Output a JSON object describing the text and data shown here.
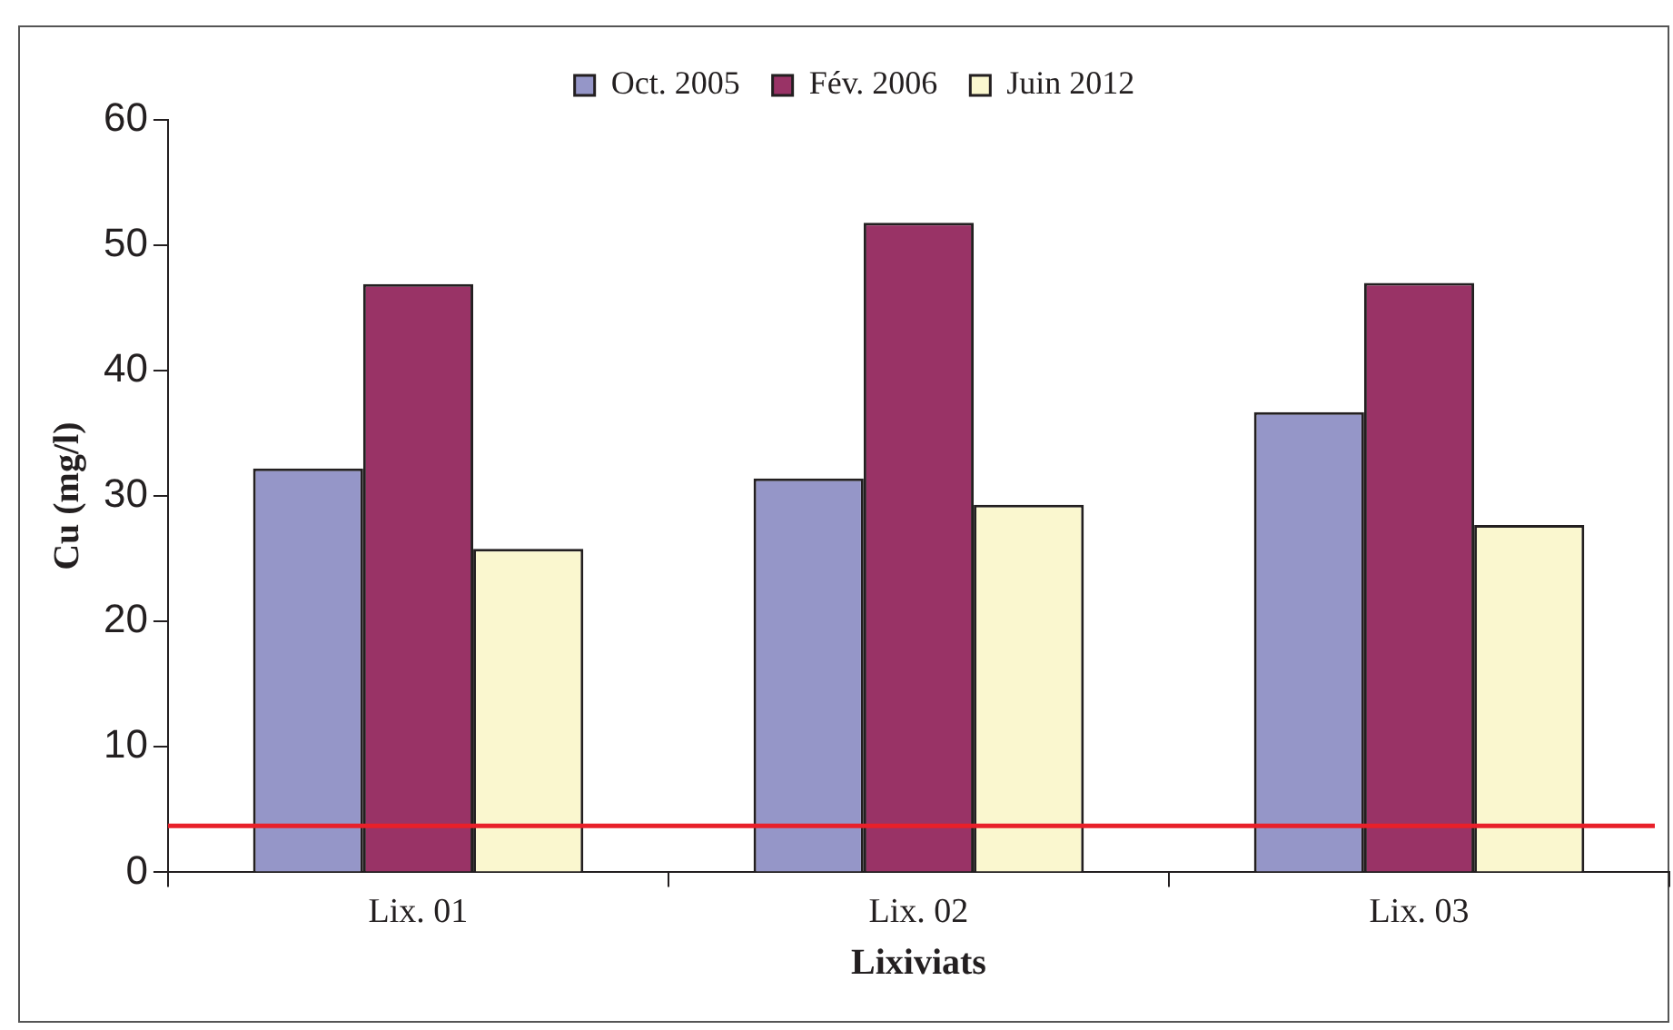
{
  "chart_data": {
    "type": "bar",
    "xlabel": "Lixiviats",
    "ylabel": "Cu (mg/l)",
    "categories": [
      "Lix. 01",
      "Lix. 02",
      "Lix. 03"
    ],
    "series": [
      {
        "name": "Oct. 2005",
        "color": "#9596c8",
        "values": [
          32.2,
          31.4,
          36.7
        ]
      },
      {
        "name": "Fév. 2006",
        "color": "#993366",
        "values": [
          46.9,
          51.8,
          47.0
        ]
      },
      {
        "name": "Juin 2012",
        "color": "#faf7cf",
        "values": [
          25.8,
          29.3,
          27.7
        ]
      }
    ],
    "ylim": [
      0,
      60
    ],
    "yticks": [
      0,
      10,
      20,
      30,
      40,
      50,
      60
    ],
    "grid": false,
    "legend": "top",
    "ref_lines": [
      {
        "axis": "y",
        "value": 3.7,
        "color": "#e8202a"
      }
    ]
  }
}
